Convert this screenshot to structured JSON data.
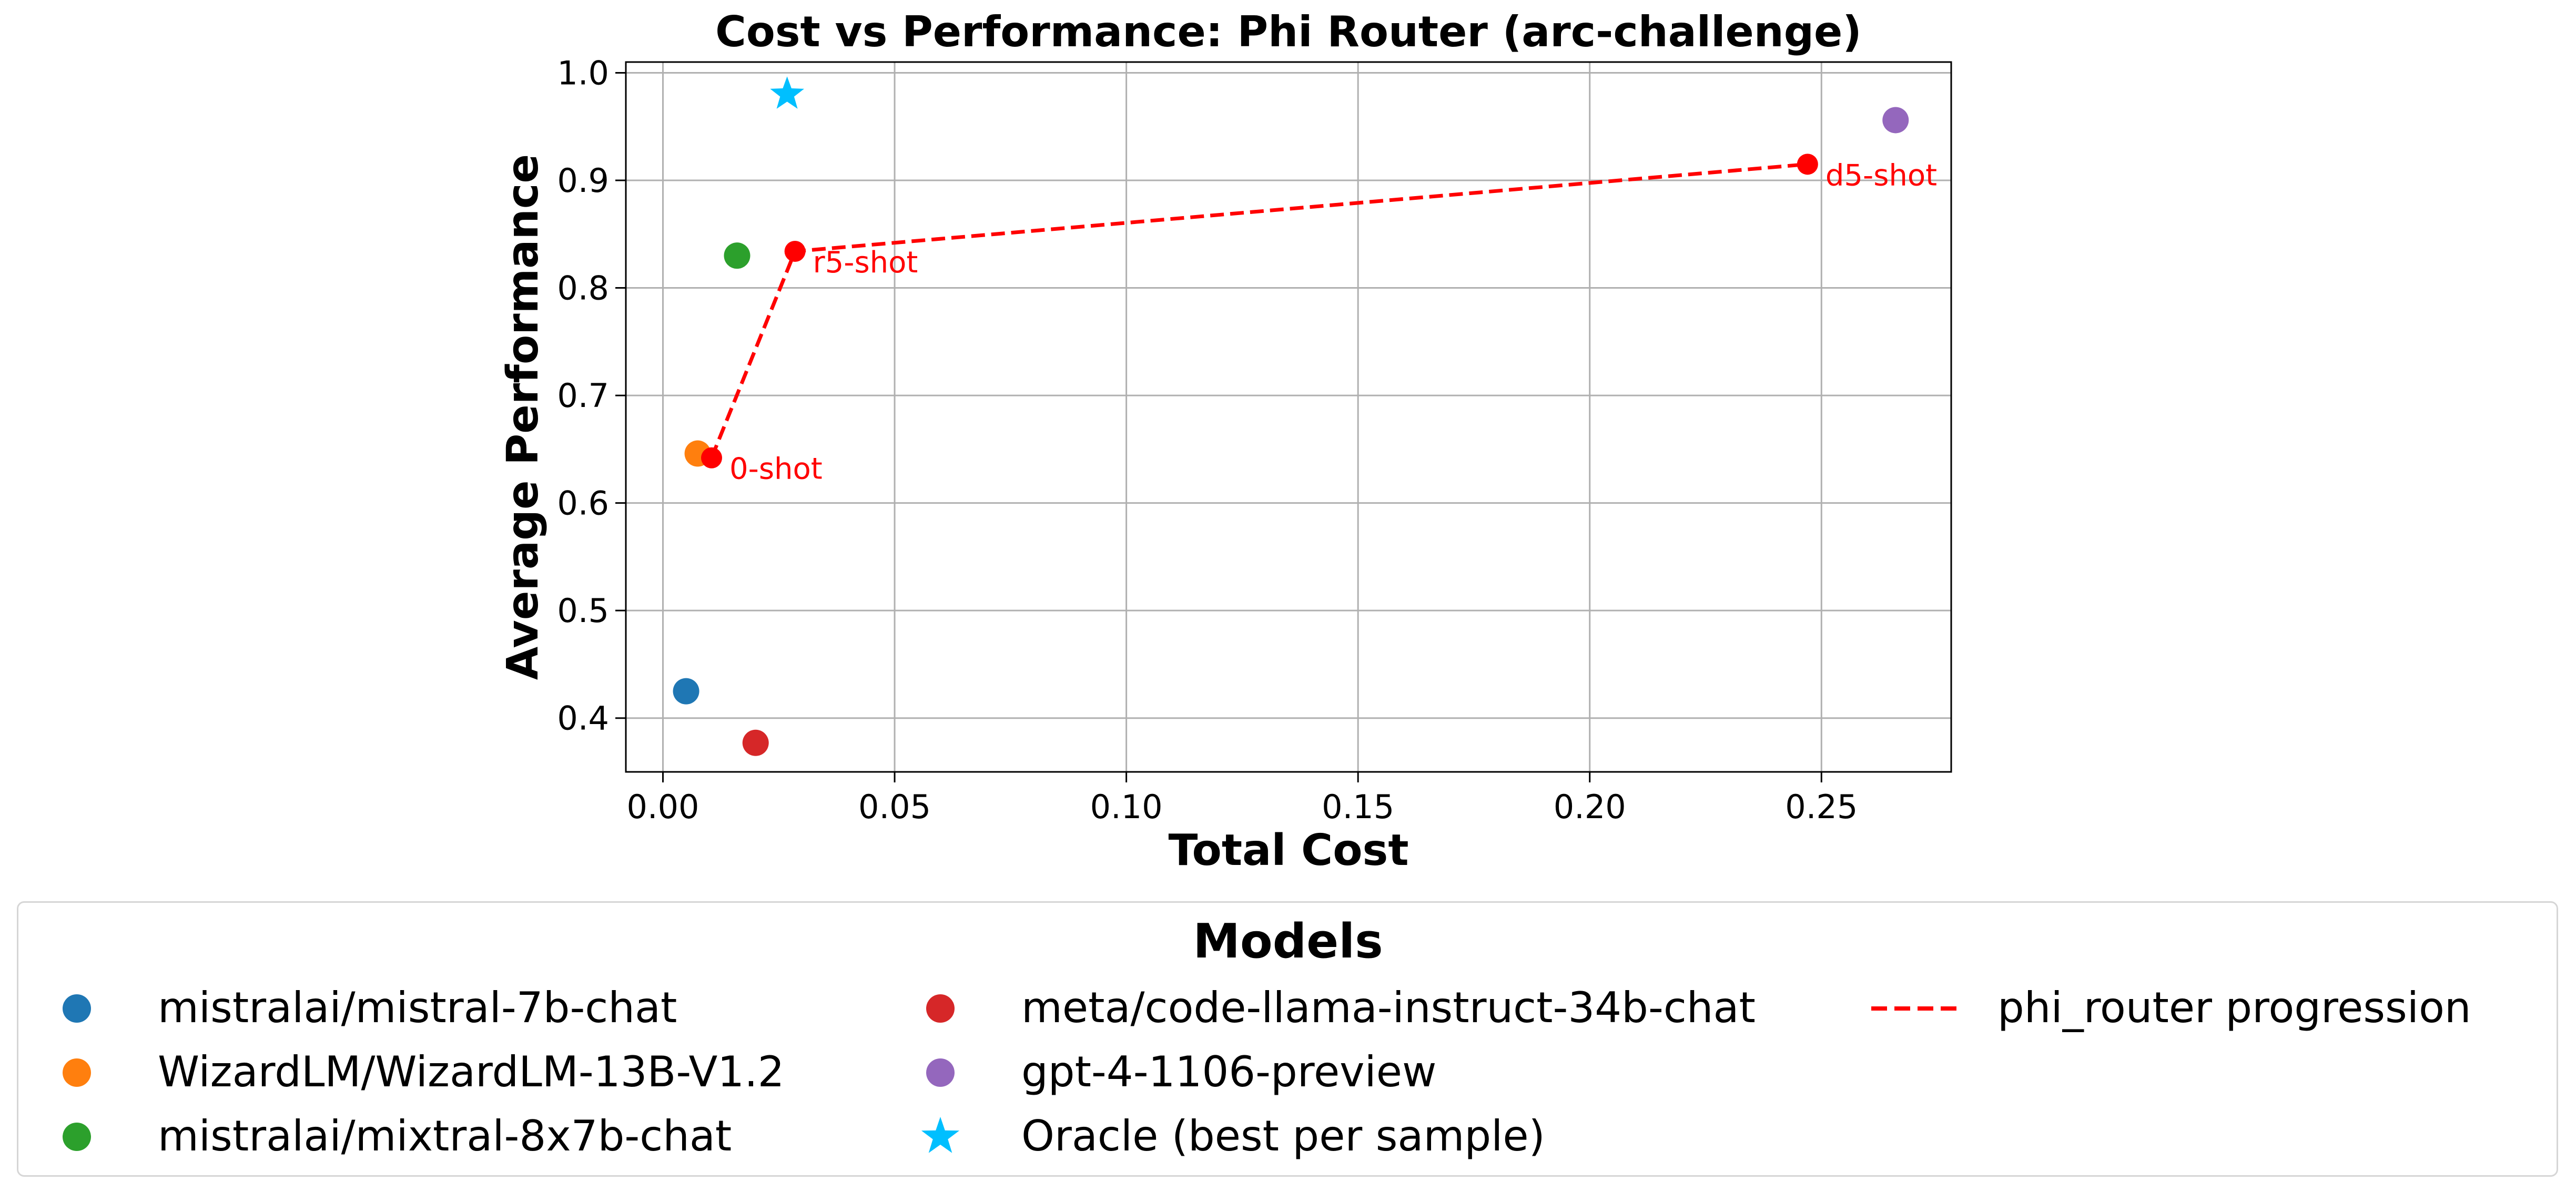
{
  "chart_data": {
    "type": "scatter",
    "title": "Cost vs Performance: Phi Router (arc-challenge)",
    "xlabel": "Total Cost",
    "ylabel": "Average Performance",
    "xlim": [
      -0.008,
      0.278
    ],
    "ylim": [
      0.35,
      1.01
    ],
    "xticks": [
      0.0,
      0.05,
      0.1,
      0.15,
      0.2,
      0.25
    ],
    "xtick_labels": [
      "0.00",
      "0.05",
      "0.10",
      "0.15",
      "0.20",
      "0.25"
    ],
    "yticks": [
      0.4,
      0.5,
      0.6,
      0.7,
      0.8,
      0.9,
      1.0
    ],
    "ytick_labels": [
      "0.4",
      "0.5",
      "0.6",
      "0.7",
      "0.8",
      "0.9",
      "1.0"
    ],
    "grid": true,
    "legend_title": "Models",
    "legend_position": "bottom",
    "series": [
      {
        "name": "mistralai/mistral-7b-chat",
        "marker": "circle",
        "color": "#1f77b4",
        "points": [
          {
            "x": 0.005,
            "y": 0.425
          }
        ]
      },
      {
        "name": "WizardLM/WizardLM-13B-V1.2",
        "marker": "circle",
        "color": "#ff7f0e",
        "points": [
          {
            "x": 0.0075,
            "y": 0.646
          }
        ]
      },
      {
        "name": "mistralai/mixtral-8x7b-chat",
        "marker": "circle",
        "color": "#2ca02c",
        "points": [
          {
            "x": 0.016,
            "y": 0.83
          }
        ]
      },
      {
        "name": "meta/code-llama-instruct-34b-chat",
        "marker": "circle",
        "color": "#d62728",
        "points": [
          {
            "x": 0.02,
            "y": 0.377
          }
        ]
      },
      {
        "name": "gpt-4-1106-preview",
        "marker": "circle",
        "color": "#9467bd",
        "points": [
          {
            "x": 0.266,
            "y": 0.956
          }
        ]
      },
      {
        "name": "Oracle (best per sample)",
        "marker": "star",
        "color": "#00bfff",
        "points": [
          {
            "x": 0.0268,
            "y": 0.98
          }
        ]
      },
      {
        "name": "phi_router progression",
        "marker": "dashed-line",
        "color": "#ff0000",
        "points": [
          {
            "x": 0.0105,
            "y": 0.642,
            "label": "0-shot"
          },
          {
            "x": 0.0285,
            "y": 0.834,
            "label": "r5-shot"
          },
          {
            "x": 0.247,
            "y": 0.915,
            "label": "d5-shot"
          }
        ]
      }
    ]
  }
}
